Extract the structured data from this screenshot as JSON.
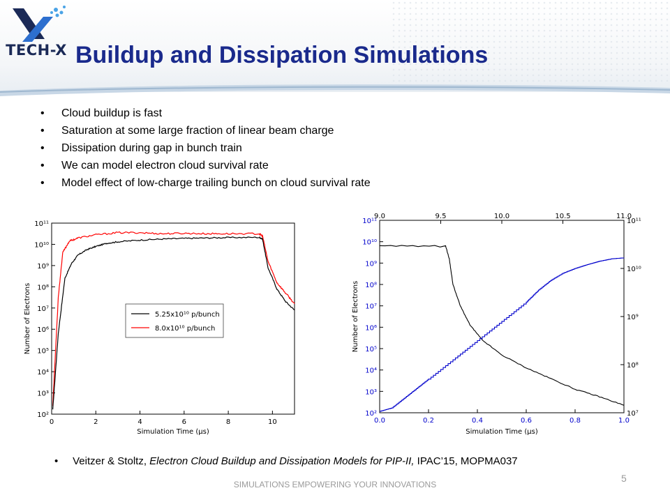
{
  "slide": {
    "title": "Buildup and Dissipation Simulations",
    "logo_text": "TECH-X",
    "bullets": [
      "Cloud buildup is fast",
      "Saturation at some large fraction of linear beam charge",
      "Dissipation during gap in bunch train",
      "We can model electron cloud survival rate",
      "Model effect of low-charge trailing bunch on cloud survival rate"
    ],
    "bullet_glyph": "•",
    "reference": {
      "authors": "Veitzer & Stoltz, ",
      "paper_title": "Electron Cloud Buildup and Dissipation Models for PIP-II,",
      "venue": " IPAC’15, MOPMA037"
    },
    "footer": "SIMULATIONS EMPOWERING YOUR INNOVATIONS",
    "page_number": "5",
    "colors": {
      "title": "#1a2a8c",
      "series_black": "#000000",
      "series_red": "#ff0000",
      "series_blue": "#0000cc"
    }
  },
  "chart_data": [
    {
      "type": "line",
      "xlabel": "Simulation Time (μs)",
      "ylabel": "Number of Electrons",
      "y_scale": "log",
      "xlim": [
        0,
        11
      ],
      "ylim_exp": [
        2,
        11
      ],
      "xticks": [
        "0",
        "2",
        "4",
        "6",
        "8",
        "10"
      ],
      "yticks": [
        "10²",
        "10³",
        "10⁴",
        "10⁵",
        "10⁶",
        "10⁷",
        "10⁸",
        "10⁹",
        "10¹⁰",
        "10¹¹"
      ],
      "legend_position": "center-right",
      "series": [
        {
          "name": "5.25x10¹⁰ p/bunch",
          "color": "#000000",
          "points": [
            [
              0.05,
              2.2
            ],
            [
              0.3,
              5.8
            ],
            [
              0.6,
              8.4
            ],
            [
              0.9,
              9.1
            ],
            [
              1.2,
              9.5
            ],
            [
              1.6,
              9.75
            ],
            [
              2.0,
              9.9
            ],
            [
              2.5,
              10.05
            ],
            [
              3.0,
              10.12
            ],
            [
              4.0,
              10.2
            ],
            [
              5.0,
              10.25
            ],
            [
              6.0,
              10.28
            ],
            [
              7.0,
              10.3
            ],
            [
              8.0,
              10.32
            ],
            [
              9.4,
              10.33
            ],
            [
              9.55,
              10.25
            ],
            [
              9.8,
              8.9
            ],
            [
              10.2,
              7.9
            ],
            [
              10.6,
              7.3
            ],
            [
              11.0,
              6.9
            ]
          ]
        },
        {
          "name": "8.0x10¹⁰ p/bunch",
          "color": "#ff0000",
          "points": [
            [
              0.05,
              2.4
            ],
            [
              0.3,
              7.5
            ],
            [
              0.5,
              9.6
            ],
            [
              0.8,
              10.15
            ],
            [
              1.2,
              10.3
            ],
            [
              2.0,
              10.45
            ],
            [
              3.0,
              10.55
            ],
            [
              4.0,
              10.55
            ],
            [
              5.0,
              10.5
            ],
            [
              6.0,
              10.52
            ],
            [
              7.0,
              10.5
            ],
            [
              8.0,
              10.5
            ],
            [
              9.4,
              10.5
            ],
            [
              9.55,
              10.4
            ],
            [
              9.8,
              9.2
            ],
            [
              10.2,
              8.2
            ],
            [
              10.6,
              7.7
            ],
            [
              11.0,
              7.2
            ]
          ]
        }
      ]
    },
    {
      "type": "line",
      "xlabel": "Simulation Time (μs)",
      "ylabel": "Number of Electrons",
      "y_scale": "log",
      "xlim": [
        0.0,
        1.0
      ],
      "ylim_exp": [
        2,
        11
      ],
      "xticks": [
        "0.0",
        "0.2",
        "0.4",
        "0.6",
        "0.8",
        "1.0"
      ],
      "top_xticks": [
        "9.0",
        "9.5",
        "10.0",
        "10.5",
        "11.0"
      ],
      "yticks": [
        "10²",
        "10³",
        "10⁴",
        "10⁵",
        "10⁶",
        "10⁷",
        "10⁸",
        "10⁹",
        "10¹⁰",
        "10¹¹"
      ],
      "right_ylim_exp": [
        7,
        11
      ],
      "right_yticks": [
        "10⁷",
        "10⁸",
        "10⁹",
        "10¹⁰",
        "10¹¹"
      ],
      "series": [
        {
          "color": "#000000",
          "axis": "left",
          "points": [
            [
              0.0,
              9.8
            ],
            [
              0.27,
              9.8
            ],
            [
              0.285,
              9.2
            ],
            [
              0.3,
              8.0
            ],
            [
              0.33,
              7.0
            ],
            [
              0.37,
              6.1
            ],
            [
              0.42,
              5.4
            ],
            [
              0.5,
              4.7
            ],
            [
              0.6,
              4.1
            ],
            [
              0.7,
              3.6
            ],
            [
              0.8,
              3.1
            ],
            [
              0.9,
              2.75
            ],
            [
              1.0,
              2.35
            ]
          ]
        },
        {
          "color": "#0000cc",
          "axis": "right",
          "points": [
            [
              0.0,
              7.03
            ],
            [
              0.05,
              7.1
            ],
            [
              0.1,
              7.3
            ],
            [
              0.15,
              7.5
            ],
            [
              0.2,
              7.7
            ],
            [
              0.3,
              8.1
            ],
            [
              0.4,
              8.5
            ],
            [
              0.5,
              8.9
            ],
            [
              0.6,
              9.3
            ],
            [
              0.65,
              9.55
            ],
            [
              0.7,
              9.75
            ],
            [
              0.75,
              9.9
            ],
            [
              0.8,
              10.0
            ],
            [
              0.85,
              10.08
            ],
            [
              0.9,
              10.15
            ],
            [
              0.95,
              10.2
            ],
            [
              1.0,
              10.22
            ]
          ]
        }
      ]
    }
  ]
}
